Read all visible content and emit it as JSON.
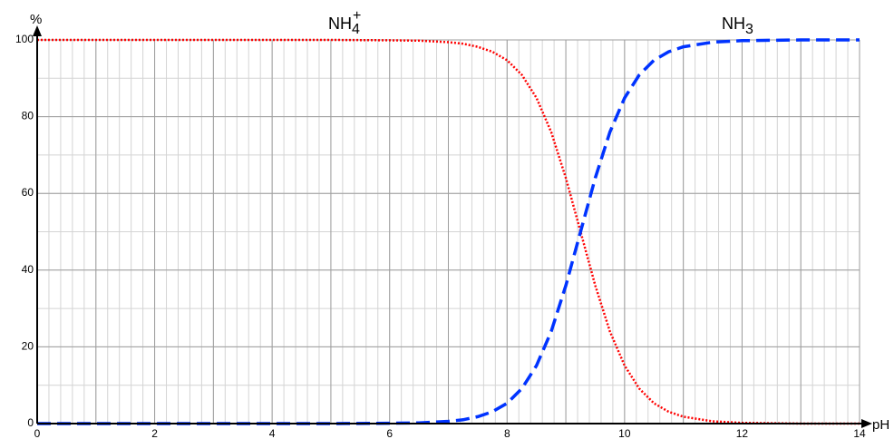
{
  "chart_data": {
    "type": "line",
    "x_axis_label": "pH",
    "y_axis_label": "%",
    "xlim": [
      0,
      14
    ],
    "ylim": [
      0,
      100
    ],
    "x_ticks": [
      "0",
      "2",
      "4",
      "6",
      "8",
      "10",
      "12",
      "14"
    ],
    "y_ticks": [
      "0",
      "20",
      "40",
      "60",
      "80",
      "100"
    ],
    "grid": true,
    "pKa": 9.25,
    "series": [
      {
        "name_main": "NH",
        "name_sub": "4",
        "name_sup": "+",
        "color": "#ff0000",
        "style": "dotted",
        "x": [
          0,
          1,
          2,
          3,
          4,
          5,
          6,
          6.5,
          7,
          7.25,
          7.5,
          7.75,
          8,
          8.25,
          8.5,
          8.75,
          9,
          9.25,
          9.5,
          9.75,
          10,
          10.25,
          10.5,
          10.75,
          11,
          11.5,
          12,
          13,
          14
        ],
        "y": [
          100,
          100,
          100,
          100,
          100,
          100,
          99.9,
          99.8,
          99.4,
          99.0,
          98.2,
          96.9,
          94.7,
          90.9,
          84.9,
          76.0,
          64.0,
          50.0,
          36.0,
          24.0,
          15.1,
          9.1,
          5.3,
          3.1,
          1.8,
          0.6,
          0.2,
          0.0,
          0.0
        ]
      },
      {
        "name_main": "NH",
        "name_sub": "3",
        "name_sup": "",
        "color": "#0033ff",
        "style": "dashed",
        "x": [
          0,
          1,
          2,
          3,
          4,
          5,
          6,
          6.5,
          7,
          7.25,
          7.5,
          7.75,
          8,
          8.25,
          8.5,
          8.75,
          9,
          9.25,
          9.5,
          9.75,
          10,
          10.25,
          10.5,
          10.75,
          11,
          11.5,
          12,
          13,
          14
        ],
        "y": [
          0,
          0,
          0,
          0,
          0,
          0,
          0.1,
          0.2,
          0.6,
          1.0,
          1.8,
          3.1,
          5.3,
          9.1,
          15.1,
          24.0,
          36.0,
          50.0,
          64.0,
          76.0,
          84.9,
          90.9,
          94.7,
          96.9,
          98.2,
          99.4,
          99.8,
          100,
          100
        ]
      }
    ]
  }
}
